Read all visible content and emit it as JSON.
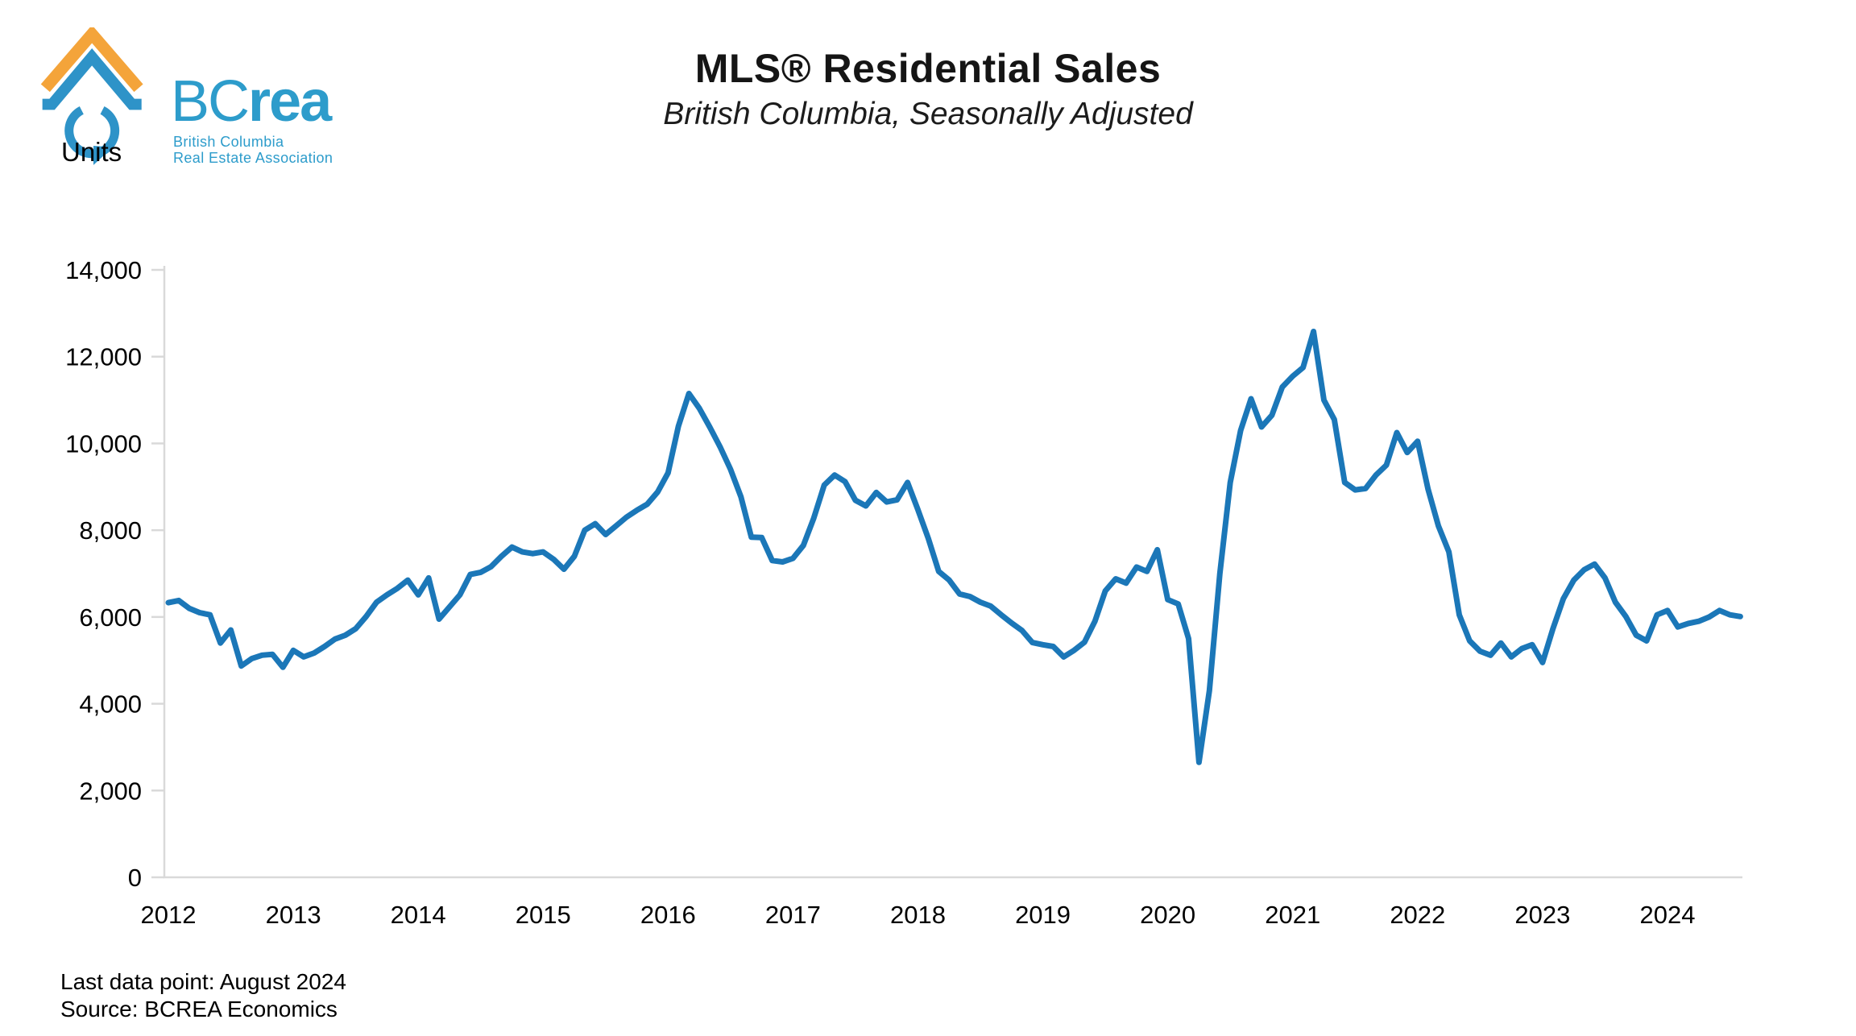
{
  "logo": {
    "wordmark_regular": "BC",
    "wordmark_bold": "rea",
    "subline1": "British Columbia",
    "subline2": "Real Estate Association",
    "text_blue": "#2D9CCB",
    "house_blue": "#2E93C8",
    "roof_orange": "#F4A43A"
  },
  "chart_data": {
    "type": "line",
    "title": "MLS® Residential Sales",
    "subtitle": "British Columbia, Seasonally Adjusted",
    "ylabel": "Units",
    "x_start": "2012-01",
    "frequency": "monthly",
    "x_tick_labels": [
      "2012",
      "2013",
      "2014",
      "2015",
      "2016",
      "2017",
      "2018",
      "2019",
      "2020",
      "2021",
      "2022",
      "2023",
      "2024"
    ],
    "y_ticks": [
      0,
      2000,
      4000,
      6000,
      8000,
      10000,
      12000,
      14000
    ],
    "ylim": [
      0,
      14000
    ],
    "grid": false,
    "legend_position": "none",
    "line_color": "#1B77B8",
    "axis_color": "#D9D9D9",
    "series": [
      {
        "name": "MLS residential sales, units, seasonally adjusted",
        "values": [
          6330,
          6380,
          6200,
          6100,
          6050,
          5400,
          5700,
          4870,
          5040,
          5120,
          5140,
          4840,
          5230,
          5080,
          5170,
          5320,
          5490,
          5580,
          5730,
          6010,
          6340,
          6510,
          6660,
          6850,
          6510,
          6900,
          5950,
          6230,
          6510,
          6980,
          7030,
          7160,
          7400,
          7610,
          7500,
          7460,
          7500,
          7330,
          7100,
          7400,
          8000,
          8150,
          7900,
          8100,
          8300,
          8460,
          8600,
          8880,
          9320,
          10400,
          11150,
          10810,
          10380,
          9920,
          9400,
          8770,
          7840,
          7830,
          7300,
          7270,
          7350,
          7650,
          8280,
          9040,
          9270,
          9120,
          8690,
          8560,
          8870,
          8650,
          8700,
          9100,
          8470,
          7810,
          7050,
          6850,
          6530,
          6470,
          6340,
          6250,
          6050,
          5860,
          5690,
          5410,
          5360,
          5320,
          5080,
          5230,
          5420,
          5900,
          6600,
          6880,
          6780,
          7150,
          7050,
          7550,
          6400,
          6300,
          5500,
          2650,
          4300,
          7000,
          9100,
          10300,
          11030,
          10380,
          10650,
          11300,
          11550,
          11750,
          12580,
          11000,
          10550,
          9100,
          8930,
          8960,
          9270,
          9500,
          10250,
          9790,
          10050,
          8950,
          8100,
          7500,
          6050,
          5450,
          5210,
          5120,
          5400,
          5080,
          5270,
          5360,
          4950,
          5730,
          6420,
          6850,
          7090,
          7220,
          6900,
          6340,
          6010,
          5580,
          5450,
          6050,
          6150,
          5770,
          5850,
          5900,
          6000,
          6150,
          6050,
          6010
        ]
      }
    ]
  },
  "footer": {
    "last_data_point": "Last data point: August 2024",
    "source": "Source: BCREA Economics"
  }
}
